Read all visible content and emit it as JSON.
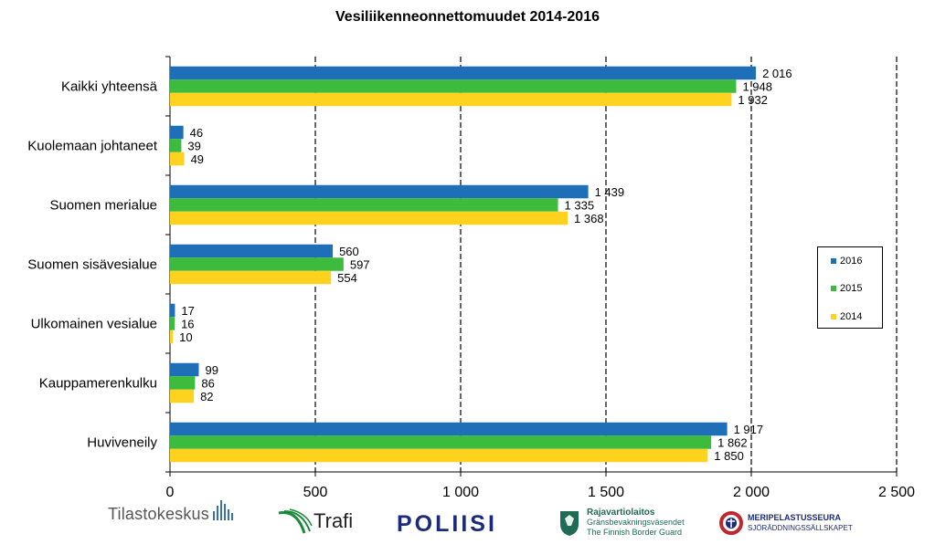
{
  "chart_data": {
    "type": "bar",
    "orientation": "horizontal",
    "title": "Vesiliikenneonnettomuudet 2014-2016",
    "categories": [
      "Kaikki yhteensä",
      "Kuolemaan johtaneet",
      "Suomen merialue",
      "Suomen sisävesialue",
      "Ulkomainen vesialue",
      "Kauppamerenkulku",
      "Huviveneily"
    ],
    "series": [
      {
        "name": "2016",
        "color": "#1f6fb8",
        "values": [
          2016,
          46,
          1439,
          560,
          17,
          99,
          1917
        ],
        "labels": [
          "2 016",
          "46",
          "1 439",
          "560",
          "17",
          "99",
          "1 917"
        ]
      },
      {
        "name": "2015",
        "color": "#3dbb3d",
        "values": [
          1948,
          39,
          1335,
          597,
          16,
          86,
          1862
        ],
        "labels": [
          "1 948",
          "39",
          "1 335",
          "597",
          "16",
          "86",
          "1 862"
        ]
      },
      {
        "name": "2014",
        "color": "#ffd21f",
        "values": [
          1932,
          49,
          1368,
          554,
          10,
          82,
          1850
        ],
        "labels": [
          "1 932",
          "49",
          "1 368",
          "554",
          "10",
          "82",
          "1 850"
        ]
      }
    ],
    "xlim": [
      0,
      2500
    ],
    "ticks": [
      0,
      500,
      1000,
      1500,
      2000,
      2500
    ],
    "tick_labels": [
      "0",
      "500",
      "1 000",
      "1 500",
      "2 000",
      "2 500"
    ],
    "grid": "vertical dashed",
    "legend_position": "right"
  },
  "logos": {
    "tilastokeskus": "Tilastokeskus",
    "trafi": "Trafi",
    "poliisi": "POLIISI",
    "rajavartiolaitos_line1": "Rajavartiolaitos",
    "rajavartiolaitos_line2": "Gränsbevakningsväsendet",
    "rajavartiolaitos_line3": "The Finnish Border Guard",
    "meripelastusseura_line1": "MERIPELASTUSSEURA",
    "meripelastusseura_line2": "SJÖRÄDDNINGSSÄLLSKAPET",
    "colors": {
      "tilastokeskus_bars": "#3a6fb0",
      "trafi_green": "#1a8a3a",
      "poliisi_blue": "#1b2b7a",
      "raja_green": "#1f6b55",
      "meri_red": "#c0282d"
    }
  }
}
